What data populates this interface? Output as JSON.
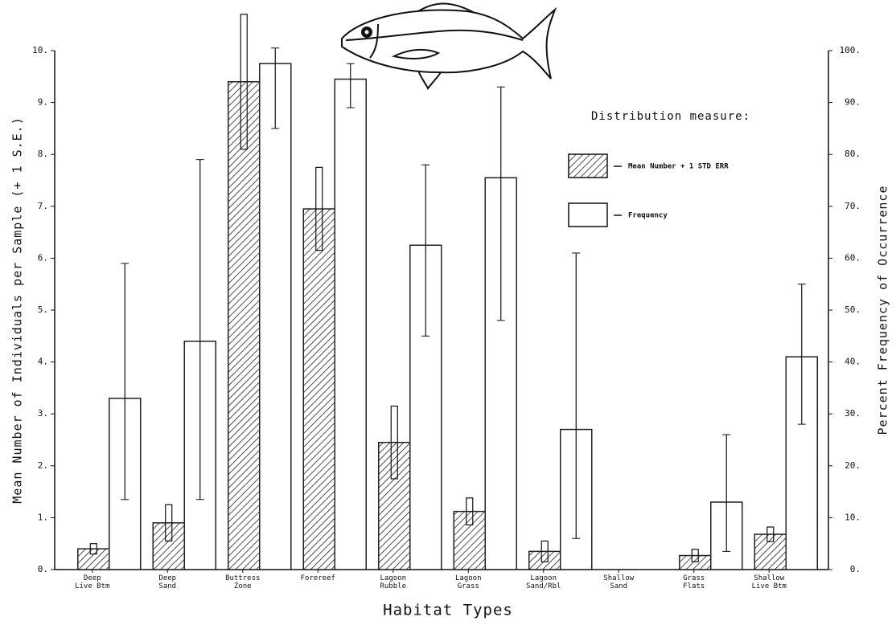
{
  "chart_data": {
    "type": "bar",
    "x_label": "Habitat Types",
    "y_label": "Mean Number of Individuals per Sample (+ 1 S.E.)",
    "y2_label": "Percent Frequency of Occurrence",
    "legend_title": "Distribution measure:",
    "categories": [
      [
        "Deep",
        "Live Btm"
      ],
      [
        "Deep",
        "Sand"
      ],
      [
        "Buttress",
        "Zone"
      ],
      [
        "Forereef"
      ],
      [
        "Lagoon",
        "Rubble"
      ],
      [
        "Lagoon",
        "Grass"
      ],
      [
        "Lagoon",
        "Sand/Rbl"
      ],
      [
        "Shallow",
        "Sand"
      ],
      [
        "Grass",
        "Flats"
      ],
      [
        "Shallow",
        "Live Btm"
      ]
    ],
    "series": [
      {
        "name": "Mean Number + 1 STD ERR",
        "color": "#222222",
        "pattern": "hatch",
        "values": [
          0.4,
          0.9,
          9.4,
          6.95,
          2.45,
          1.12,
          0.35,
          0,
          0.27,
          0.68
        ],
        "errors": [
          0.1,
          0.35,
          1.3,
          0.8,
          0.7,
          0.26,
          0.2,
          null,
          0.12,
          0.14
        ]
      },
      {
        "name": "Frequency",
        "color": "#222222",
        "pattern": "open",
        "axis": "y2",
        "values": [
          33,
          44,
          97.5,
          94.5,
          62.5,
          75.5,
          27,
          0,
          13,
          41
        ],
        "error_low": [
          19.5,
          30.5,
          12.5,
          5.5,
          17.5,
          27.5,
          21,
          null,
          9.5,
          13
        ],
        "error_high": [
          26,
          35,
          3,
          3,
          15.5,
          17.5,
          34,
          null,
          13,
          14
        ]
      }
    ],
    "ylim": [
      0,
      10
    ],
    "yticks": [
      {
        "value": 0,
        "label": "0."
      },
      {
        "value": 1,
        "label": "1."
      },
      {
        "value": 2,
        "label": "2."
      },
      {
        "value": 3,
        "label": "3."
      },
      {
        "value": 4,
        "label": "4."
      },
      {
        "value": 5,
        "label": "5."
      },
      {
        "value": 6,
        "label": "6."
      },
      {
        "value": 7,
        "label": "7."
      },
      {
        "value": 8,
        "label": "8."
      },
      {
        "value": 9,
        "label": "9."
      },
      {
        "value": 10,
        "label": "10."
      }
    ],
    "y2lim": [
      0,
      100
    ],
    "y2ticks": [
      {
        "value": 0,
        "label": "0."
      },
      {
        "value": 10,
        "label": "10."
      },
      {
        "value": 20,
        "label": "20."
      },
      {
        "value": 30,
        "label": "30."
      },
      {
        "value": 40,
        "label": "40."
      },
      {
        "value": 50,
        "label": "50."
      },
      {
        "value": 60,
        "label": "60."
      },
      {
        "value": 70,
        "label": "70."
      },
      {
        "value": 80,
        "label": "80."
      },
      {
        "value": 90,
        "label": "90."
      },
      {
        "value": 100,
        "label": "100."
      }
    ],
    "grid": false
  }
}
